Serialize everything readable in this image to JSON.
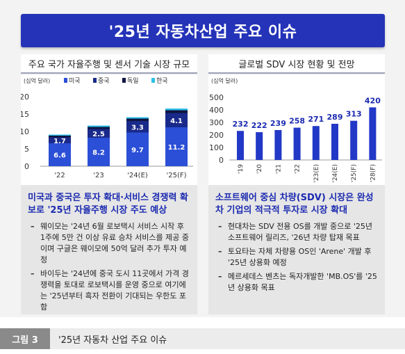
{
  "title": "'25년 자동차산업 주요 이슈",
  "left_panel": {
    "header": "주요 국가 자율주행 및 센서 기술 시장 규모",
    "desc_title": "미국과 중국은 투자 확대·서비스 경쟁력 확보로 '25년 자율주행 시장 주도 예상",
    "bullets": [
      "웨이모는 '24년 6월 로보택시 서비스 시작 후 1주에 5만 건 이상 유료 승차 서비스를 제공 중이며 구글은 웨이모에 50억 달러 추가 투자 예정",
      "바이두는 '24년에 중국 도시 11곳에서 가격 경쟁력을 토대로 로보택시를 운영 중으로 여기에는 '25년부터 흑자 전환이 기대되는 우한도 포함"
    ]
  },
  "right_panel": {
    "header": "글로벌 SDV 시장 현황 및 전망",
    "desc_title": "소프트웨어 중심 차량(SDV) 시장은 완성차 기업의 적극적 투자로 시장 확대",
    "bullets": [
      "현대차는 SDV 전용 OS를 개발 중으로 '25년 소프트웨어 릴리즈, '26년 차량 탑재 목표",
      "토요타는 자체 차량용 OS인 'Arene' 개발 후 '25년 상용화 예정",
      "메르세데스 벤츠는 독자개발한 'MB.OS'를 '25년 상용화 목표"
    ]
  },
  "caption": {
    "figure_label": "그림 3",
    "text": "'25년 자동차 산업 주요 이슈"
  },
  "colors": {
    "title_bg": "#2433b8",
    "us": "#2b4fd6",
    "cn": "#1a2a8a",
    "de": "#0f1540",
    "kr": "#2fc0e8",
    "sdv_bar": "#2238c6",
    "sdv_label": "#1c2bb0"
  },
  "chart_data": [
    {
      "type": "bar",
      "stacked": true,
      "unit": "(십억 달러)",
      "categories": [
        "'22",
        "'23",
        "'24(E)",
        "'25(F)"
      ],
      "series": [
        {
          "name": "미국",
          "values": [
            6.6,
            8.2,
            9.7,
            11.2
          ]
        },
        {
          "name": "중국",
          "values": [
            1.7,
            2.5,
            3.3,
            4.1
          ]
        },
        {
          "name": "독일",
          "values": [
            0.5,
            0.6,
            0.7,
            0.8
          ]
        },
        {
          "name": "한국",
          "values": [
            0.3,
            0.4,
            0.4,
            0.5
          ]
        }
      ],
      "ylim": [
        0,
        20
      ],
      "yticks": [
        0,
        5,
        10,
        15,
        20
      ],
      "legend": "top"
    },
    {
      "type": "bar",
      "unit": "(십억 달러)",
      "categories": [
        "'19",
        "'20",
        "'21",
        "'22",
        "'23(E)",
        "'24(E)",
        "'25(F)",
        "'28(F)"
      ],
      "values": [
        232,
        222,
        239,
        258,
        271,
        289,
        313,
        420
      ],
      "ylim": [
        0,
        500
      ],
      "yticks": [
        0,
        100,
        200,
        300,
        400,
        500
      ]
    }
  ]
}
